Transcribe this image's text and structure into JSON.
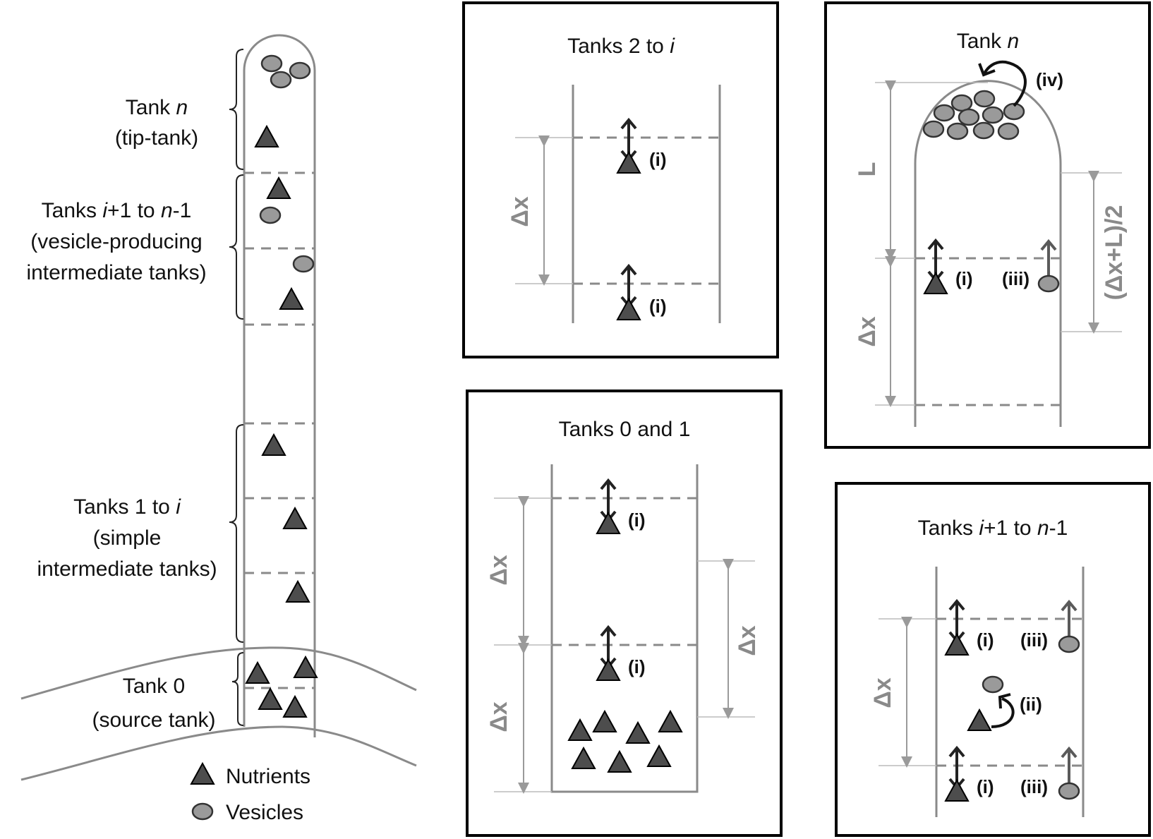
{
  "left": {
    "tank_n": {
      "line1": "Tank ",
      "var": "n",
      "line2": "(tip-tank)"
    },
    "tanks_vesicle": {
      "line1_a": "Tanks ",
      "line1_var_i": "i",
      "line1_b": "+1 to ",
      "line1_var_n": "n",
      "line1_c": "-1",
      "line2": "(vesicle-producing",
      "line3": "intermediate tanks)"
    },
    "dots": "· · ·",
    "tanks_simple": {
      "line1_a": "Tanks 1 to ",
      "line1_var": "i",
      "line2": "(simple",
      "line3": "intermediate tanks)"
    },
    "tank0": {
      "line1": "Tank 0",
      "line2": "(source tank)"
    }
  },
  "legend": {
    "nutrients": "Nutrients",
    "vesicles": "Vesicles"
  },
  "panels": {
    "tanks2i": {
      "title_a": "Tanks 2 to ",
      "title_var": "i",
      "dx": "Δx",
      "i1": "(i)",
      "i2": "(i)"
    },
    "tanks01": {
      "title": "Tanks 0 and 1",
      "dx1": "Δx",
      "dx2": "Δx",
      "dx3": "Δx",
      "i1": "(i)",
      "i2": "(i)"
    },
    "tankn": {
      "title_a": "Tank ",
      "title_var": "n",
      "iv": "(iv)",
      "L": "L",
      "dx": "Δx",
      "half": "(Δx+L)/2",
      "i": "(i)",
      "iii": "(iii)"
    },
    "tanksi1": {
      "title_var_i": "i",
      "title_a": "Tanks ",
      "title_b": "+1 to ",
      "title_var_n": "n",
      "title_c": "-1",
      "dx": "Δx",
      "i1": "(i)",
      "iii1": "(iii)",
      "ii": "(ii)",
      "i2": "(i)",
      "iii2": "(iii)"
    }
  },
  "colors": {
    "nutrient": "#4d4d4d",
    "vesicle": "#9a9a9a",
    "wall": "#8a8a8a",
    "arrow_dark": "#222222",
    "arrow_grey": "#5a5a5a",
    "dim": "#9a9a9a",
    "frame": "#000000"
  }
}
